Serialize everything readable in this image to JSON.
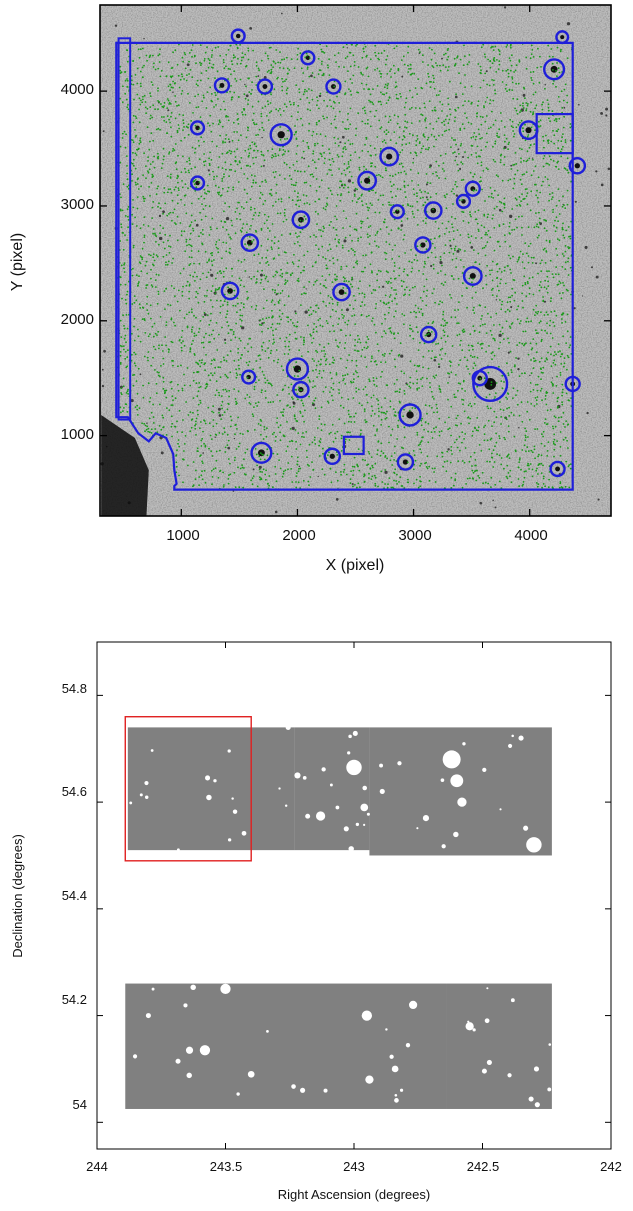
{
  "colors": {
    "mask_outline": "#1f1fd9",
    "star_points": "#1a9a1a",
    "coverage_fill": "#808080",
    "selection_box": "#e02020",
    "image_background": "#bdbdbd"
  },
  "chart_data": [
    {
      "type": "scatter",
      "title": "",
      "xlabel": "X (pixel)",
      "ylabel": "Y (pixel)",
      "xlim": [
        300,
        4700
      ],
      "ylim": [
        300,
        4750
      ],
      "xticks": [
        "1000",
        "2000",
        "3000",
        "4000"
      ],
      "yticks": [
        "1000",
        "2000",
        "3000",
        "4000"
      ],
      "tick_values_x": [
        1000,
        2000,
        3000,
        4000
      ],
      "tick_values_y": [
        1000,
        2000,
        3000,
        4000
      ],
      "grid": false,
      "mask_polygon": [
        [
          440,
          4420
        ],
        [
          4370,
          4420
        ],
        [
          4370,
          530
        ],
        [
          940,
          530
        ],
        [
          940,
          560
        ],
        [
          960,
          580
        ],
        [
          940,
          700
        ],
        [
          930,
          840
        ],
        [
          870,
          980
        ],
        [
          780,
          1020
        ],
        [
          720,
          950
        ],
        [
          630,
          1020
        ],
        [
          540,
          1160
        ],
        [
          440,
          1160
        ]
      ],
      "vertical_strip": [
        [
          460,
          1140
        ],
        [
          560,
          4460
        ]
      ],
      "boxes": [
        [
          4060,
          3460,
          4370,
          3800
        ],
        [
          2400,
          840,
          2570,
          990
        ]
      ],
      "masked_stars": [
        {
          "x": 1490,
          "y": 4480,
          "r": 55
        },
        {
          "x": 4280,
          "y": 4470,
          "r": 50
        },
        {
          "x": 2090,
          "y": 4290,
          "r": 55
        },
        {
          "x": 4210,
          "y": 4190,
          "r": 85
        },
        {
          "x": 1350,
          "y": 4050,
          "r": 60
        },
        {
          "x": 1720,
          "y": 4040,
          "r": 60
        },
        {
          "x": 2310,
          "y": 4040,
          "r": 60
        },
        {
          "x": 1140,
          "y": 3680,
          "r": 55
        },
        {
          "x": 3990,
          "y": 3660,
          "r": 75
        },
        {
          "x": 1860,
          "y": 3620,
          "r": 90
        },
        {
          "x": 2790,
          "y": 3430,
          "r": 75
        },
        {
          "x": 4410,
          "y": 3350,
          "r": 65
        },
        {
          "x": 2600,
          "y": 3220,
          "r": 75
        },
        {
          "x": 1140,
          "y": 3200,
          "r": 55
        },
        {
          "x": 3510,
          "y": 3150,
          "r": 60
        },
        {
          "x": 3430,
          "y": 3040,
          "r": 55
        },
        {
          "x": 3170,
          "y": 2960,
          "r": 70
        },
        {
          "x": 2860,
          "y": 2950,
          "r": 55
        },
        {
          "x": 2030,
          "y": 2880,
          "r": 70
        },
        {
          "x": 1590,
          "y": 2680,
          "r": 70
        },
        {
          "x": 3080,
          "y": 2660,
          "r": 65
        },
        {
          "x": 3510,
          "y": 2390,
          "r": 75
        },
        {
          "x": 1420,
          "y": 2260,
          "r": 70
        },
        {
          "x": 2380,
          "y": 2250,
          "r": 70
        },
        {
          "x": 3130,
          "y": 1880,
          "r": 65
        },
        {
          "x": 2000,
          "y": 1580,
          "r": 90
        },
        {
          "x": 1580,
          "y": 1510,
          "r": 55
        },
        {
          "x": 3570,
          "y": 1500,
          "r": 60
        },
        {
          "x": 3660,
          "y": 1450,
          "r": 145
        },
        {
          "x": 4370,
          "y": 1450,
          "r": 60
        },
        {
          "x": 2030,
          "y": 1400,
          "r": 65
        },
        {
          "x": 2970,
          "y": 1180,
          "r": 90
        },
        {
          "x": 1690,
          "y": 850,
          "r": 85
        },
        {
          "x": 2300,
          "y": 820,
          "r": 65
        },
        {
          "x": 2930,
          "y": 770,
          "r": 65
        },
        {
          "x": 4240,
          "y": 710,
          "r": 60
        }
      ]
    },
    {
      "type": "area",
      "title": "",
      "xlabel": "Right Ascension (degrees)",
      "ylabel": "Declination (degrees)",
      "xlim": [
        244,
        242
      ],
      "ylim": [
        53.95,
        54.9
      ],
      "xticks": [
        "244",
        "243.5",
        "243",
        "242.5",
        "242"
      ],
      "yticks": [
        "54",
        "54.2",
        "54.4",
        "54.6",
        "54.8"
      ],
      "tick_values_x": [
        244,
        243.5,
        243,
        242.5,
        242
      ],
      "tick_values_y": [
        54.0,
        54.2,
        54.4,
        54.6,
        54.8
      ],
      "grid": false,
      "coverage_regions": [
        {
          "ra": [
            243.88,
            243.23
          ],
          "dec": [
            54.51,
            54.74
          ]
        },
        {
          "ra": [
            243.23,
            242.94
          ],
          "dec": [
            54.51,
            54.74
          ]
        },
        {
          "ra": [
            242.94,
            242.23
          ],
          "dec": [
            54.5,
            54.74
          ]
        },
        {
          "ra": [
            243.89,
            242.64
          ],
          "dec": [
            54.025,
            54.26
          ]
        },
        {
          "ra": [
            242.64,
            242.23
          ],
          "dec": [
            54.025,
            54.26
          ]
        }
      ],
      "selection_box": {
        "ra": [
          243.89,
          243.4
        ],
        "dec": [
          54.49,
          54.76
        ]
      },
      "masked_holes": [
        {
          "ra": 243.0,
          "dec": 54.665,
          "r": 0.03
        },
        {
          "ra": 242.62,
          "dec": 54.68,
          "r": 0.035
        },
        {
          "ra": 242.6,
          "dec": 54.64,
          "r": 0.025
        },
        {
          "ra": 242.58,
          "dec": 54.6,
          "r": 0.018
        },
        {
          "ra": 243.22,
          "dec": 54.65,
          "r": 0.012
        },
        {
          "ra": 243.13,
          "dec": 54.574,
          "r": 0.018
        },
        {
          "ra": 242.96,
          "dec": 54.59,
          "r": 0.015
        },
        {
          "ra": 242.3,
          "dec": 54.52,
          "r": 0.03
        },
        {
          "ra": 243.03,
          "dec": 54.55,
          "r": 0.01
        },
        {
          "ra": 242.89,
          "dec": 54.62,
          "r": 0.01
        },
        {
          "ra": 242.72,
          "dec": 54.57,
          "r": 0.012
        },
        {
          "ra": 242.35,
          "dec": 54.72,
          "r": 0.01
        },
        {
          "ra": 243.5,
          "dec": 54.25,
          "r": 0.02
        },
        {
          "ra": 243.58,
          "dec": 54.135,
          "r": 0.02
        },
        {
          "ra": 243.64,
          "dec": 54.135,
          "r": 0.014
        },
        {
          "ra": 242.95,
          "dec": 54.2,
          "r": 0.02
        },
        {
          "ra": 242.77,
          "dec": 54.22,
          "r": 0.016
        },
        {
          "ra": 242.55,
          "dec": 54.18,
          "r": 0.016
        },
        {
          "ra": 242.94,
          "dec": 54.08,
          "r": 0.016
        },
        {
          "ra": 242.84,
          "dec": 54.1,
          "r": 0.013
        },
        {
          "ra": 243.4,
          "dec": 54.09,
          "r": 0.013
        },
        {
          "ra": 242.29,
          "dec": 54.1,
          "r": 0.01
        },
        {
          "ra": 243.8,
          "dec": 54.2,
          "r": 0.008
        },
        {
          "ra": 243.2,
          "dec": 54.06,
          "r": 0.01
        }
      ]
    }
  ]
}
